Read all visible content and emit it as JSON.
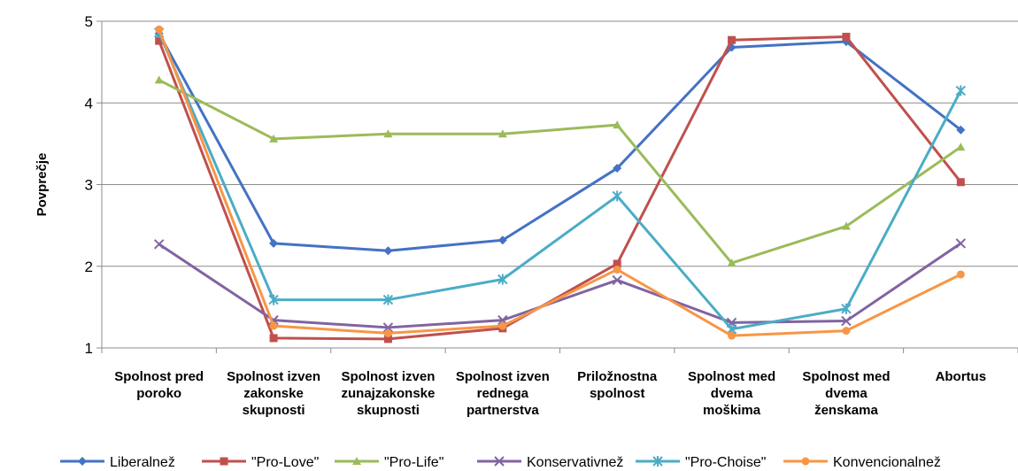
{
  "chart_data": {
    "type": "line",
    "ylabel": "Povprečje",
    "ylim": [
      1,
      5
    ],
    "yticks": [
      "1",
      "2",
      "3",
      "4",
      "5"
    ],
    "grid": true,
    "legend_position": "bottom",
    "categories": [
      [
        "Spolnost pred",
        "poroko"
      ],
      [
        "Spolnost izven",
        "zakonske",
        "skupnosti"
      ],
      [
        "Spolnost izven",
        "zunajzakonske",
        "skupnosti"
      ],
      [
        "Spolnost izven",
        "rednega",
        "partnerstva"
      ],
      [
        "Priložnostna",
        "spolnost"
      ],
      [
        "Spolnost med",
        "dvema",
        "moškima"
      ],
      [
        "Spolnost med",
        "dvema",
        "ženskama"
      ],
      [
        "Abortus"
      ]
    ],
    "series": [
      {
        "name": "Liberalnež",
        "color": "#4472C4",
        "marker": "diamond",
        "values": [
          4.85,
          2.28,
          2.19,
          2.32,
          3.2,
          4.68,
          4.75,
          3.67
        ]
      },
      {
        "name": "\"Pro-Love\"",
        "color": "#C0504D",
        "marker": "square",
        "values": [
          4.76,
          1.12,
          1.11,
          1.24,
          2.03,
          4.77,
          4.81,
          3.03
        ]
      },
      {
        "name": "\"Pro-Life\"",
        "color": "#9BBB59",
        "marker": "triangle",
        "values": [
          4.28,
          3.56,
          3.62,
          3.62,
          3.73,
          2.04,
          2.49,
          3.46
        ]
      },
      {
        "name": "Konservativnež",
        "color": "#8064A2",
        "marker": "x",
        "values": [
          2.27,
          1.34,
          1.25,
          1.34,
          1.83,
          1.31,
          1.33,
          2.28
        ]
      },
      {
        "name": "\"Pro-Choise\"",
        "color": "#4BACC6",
        "marker": "star",
        "values": [
          4.86,
          1.59,
          1.59,
          1.84,
          2.86,
          1.23,
          1.48,
          4.15
        ]
      },
      {
        "name": "Konvencionalnež",
        "color": "#F79646",
        "marker": "circle",
        "values": [
          4.9,
          1.27,
          1.18,
          1.27,
          1.96,
          1.15,
          1.21,
          1.9
        ]
      }
    ]
  }
}
